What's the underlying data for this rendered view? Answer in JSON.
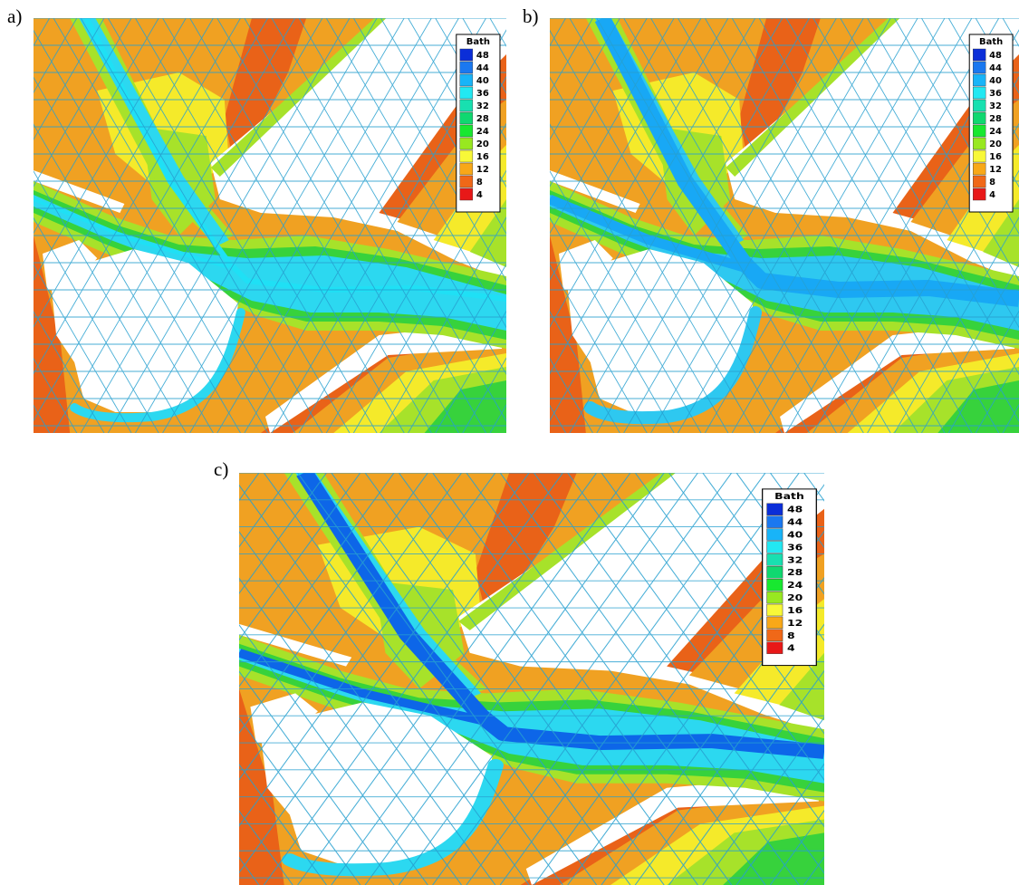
{
  "panels": [
    {
      "label": "a)",
      "legend_title": "Bath",
      "channel_fill": "#2cd8f0",
      "channel_core": "#1fe0f5",
      "core_width": 6,
      "branch_width": 10
    },
    {
      "label": "b)",
      "legend_title": "Bath",
      "channel_fill": "#2ec8f0",
      "channel_core": "#18a8f5",
      "core_width": 18,
      "branch_width": 14
    },
    {
      "label": "c)",
      "legend_title": "Bath",
      "channel_fill": "#2cd8f0",
      "channel_core": "#0d66e8",
      "core_width": 16,
      "branch_width": 14
    }
  ],
  "legend": {
    "title": "Bath",
    "levels": [
      "48",
      "44",
      "40",
      "36",
      "32",
      "28",
      "24",
      "20",
      "16",
      "12",
      "8",
      "4"
    ],
    "colors": [
      "#0b2ed8",
      "#1a78f0",
      "#18b4f8",
      "#22e8f2",
      "#18e0b0",
      "#10d870",
      "#18e830",
      "#98e820",
      "#f8f838",
      "#f8a818",
      "#f06818",
      "#e81818"
    ]
  },
  "palette": {
    "deep_orange": "#e96218",
    "orange": "#f0a122",
    "yellow": "#f5ea2a",
    "lime": "#a7e22a",
    "green": "#37d23c",
    "mesh": "#27a0d0"
  }
}
